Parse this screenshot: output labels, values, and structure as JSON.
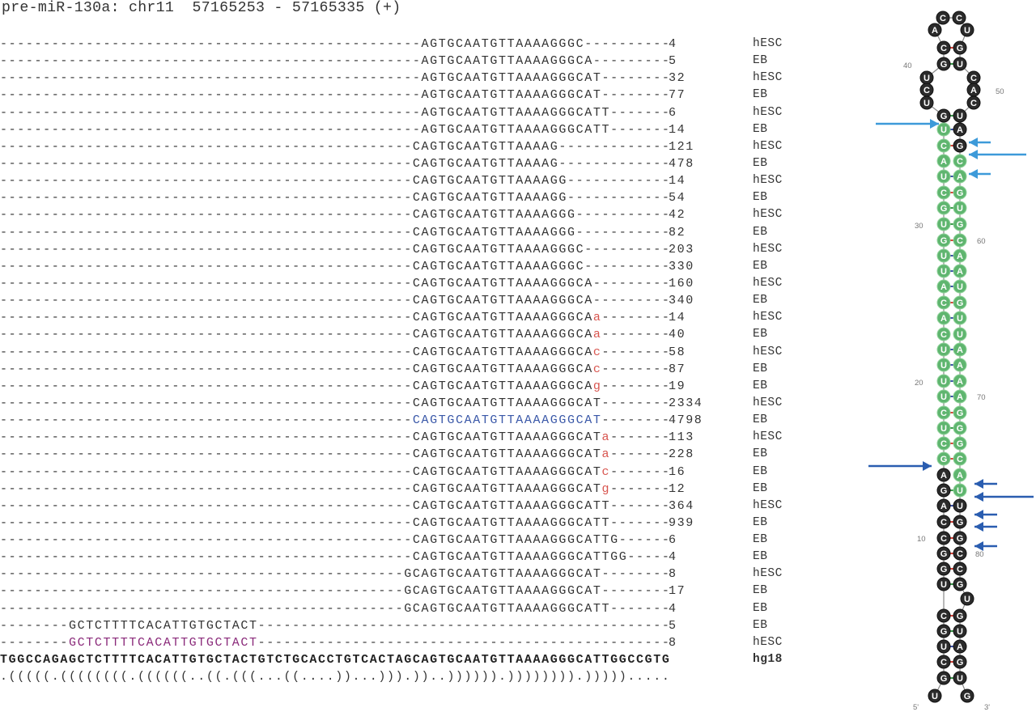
{
  "title": "pre-miR-130a: chr11  57165253 - 57165335 (+)",
  "rows": [
    {
      "pre": "-------------------------------------------------",
      "seq": "AGTGCAATGTTAAAAGGGC",
      "mod": "",
      "post": "----------",
      "count": "4",
      "sample": "hESC",
      "style": "normal"
    },
    {
      "pre": "-------------------------------------------------",
      "seq": "AGTGCAATGTTAAAAGGGCA",
      "mod": "",
      "post": "---------",
      "count": "5",
      "sample": "EB",
      "style": "normal"
    },
    {
      "pre": "-------------------------------------------------",
      "seq": "AGTGCAATGTTAAAAGGGCAT",
      "mod": "",
      "post": "--------",
      "count": "32",
      "sample": "hESC",
      "style": "normal"
    },
    {
      "pre": "-------------------------------------------------",
      "seq": "AGTGCAATGTTAAAAGGGCAT",
      "mod": "",
      "post": "--------",
      "count": "77",
      "sample": "EB",
      "style": "normal"
    },
    {
      "pre": "-------------------------------------------------",
      "seq": "AGTGCAATGTTAAAAGGGCATT",
      "mod": "",
      "post": "-------",
      "count": "6",
      "sample": "hESC",
      "style": "normal"
    },
    {
      "pre": "-------------------------------------------------",
      "seq": "AGTGCAATGTTAAAAGGGCATT",
      "mod": "",
      "post": "-------",
      "count": "14",
      "sample": "EB",
      "style": "normal"
    },
    {
      "pre": "------------------------------------------------",
      "seq": "CAGTGCAATGTTAAAAG",
      "mod": "",
      "post": "-------------",
      "count": "121",
      "sample": "hESC",
      "style": "normal"
    },
    {
      "pre": "------------------------------------------------",
      "seq": "CAGTGCAATGTTAAAAG",
      "mod": "",
      "post": "-------------",
      "count": "478",
      "sample": "EB",
      "style": "normal"
    },
    {
      "pre": "------------------------------------------------",
      "seq": "CAGTGCAATGTTAAAAGG",
      "mod": "",
      "post": "------------",
      "count": "14",
      "sample": "hESC",
      "style": "normal"
    },
    {
      "pre": "------------------------------------------------",
      "seq": "CAGTGCAATGTTAAAAGG",
      "mod": "",
      "post": "------------",
      "count": "54",
      "sample": "EB",
      "style": "normal"
    },
    {
      "pre": "------------------------------------------------",
      "seq": "CAGTGCAATGTTAAAAGGG",
      "mod": "",
      "post": "-----------",
      "count": "42",
      "sample": "hESC",
      "style": "normal"
    },
    {
      "pre": "------------------------------------------------",
      "seq": "CAGTGCAATGTTAAAAGGG",
      "mod": "",
      "post": "-----------",
      "count": "82",
      "sample": "EB",
      "style": "normal"
    },
    {
      "pre": "------------------------------------------------",
      "seq": "CAGTGCAATGTTAAAAGGGC",
      "mod": "",
      "post": "----------",
      "count": "203",
      "sample": "hESC",
      "style": "normal"
    },
    {
      "pre": "------------------------------------------------",
      "seq": "CAGTGCAATGTTAAAAGGGC",
      "mod": "",
      "post": "----------",
      "count": "330",
      "sample": "EB",
      "style": "normal"
    },
    {
      "pre": "------------------------------------------------",
      "seq": "CAGTGCAATGTTAAAAGGGCA",
      "mod": "",
      "post": "---------",
      "count": "160",
      "sample": "hESC",
      "style": "normal"
    },
    {
      "pre": "------------------------------------------------",
      "seq": "CAGTGCAATGTTAAAAGGGCA",
      "mod": "",
      "post": "---------",
      "count": "340",
      "sample": "EB",
      "style": "normal"
    },
    {
      "pre": "------------------------------------------------",
      "seq": "CAGTGCAATGTTAAAAGGGCA",
      "mod": "a",
      "post": "--------",
      "count": "14",
      "sample": "hESC",
      "style": "normal"
    },
    {
      "pre": "------------------------------------------------",
      "seq": "CAGTGCAATGTTAAAAGGGCA",
      "mod": "a",
      "post": "--------",
      "count": "40",
      "sample": "EB",
      "style": "normal"
    },
    {
      "pre": "------------------------------------------------",
      "seq": "CAGTGCAATGTTAAAAGGGCA",
      "mod": "c",
      "post": "--------",
      "count": "58",
      "sample": "hESC",
      "style": "normal"
    },
    {
      "pre": "------------------------------------------------",
      "seq": "CAGTGCAATGTTAAAAGGGCA",
      "mod": "c",
      "post": "--------",
      "count": "87",
      "sample": "EB",
      "style": "normal"
    },
    {
      "pre": "------------------------------------------------",
      "seq": "CAGTGCAATGTTAAAAGGGCA",
      "mod": "g",
      "post": "--------",
      "count": "19",
      "sample": "EB",
      "style": "normal"
    },
    {
      "pre": "------------------------------------------------",
      "seq": "CAGTGCAATGTTAAAAGGGCAT",
      "mod": "",
      "post": "--------",
      "count": "2334",
      "sample": "hESC",
      "style": "normal"
    },
    {
      "pre": "------------------------------------------------",
      "seq": "CAGTGCAATGTTAAAAGGGCAT",
      "mod": "",
      "post": "--------",
      "count": "4798",
      "sample": "EB",
      "style": "blue"
    },
    {
      "pre": "------------------------------------------------",
      "seq": "CAGTGCAATGTTAAAAGGGCAT",
      "mod": "a",
      "post": "-------",
      "count": "113",
      "sample": "hESC",
      "style": "normal"
    },
    {
      "pre": "------------------------------------------------",
      "seq": "CAGTGCAATGTTAAAAGGGCAT",
      "mod": "a",
      "post": "-------",
      "count": "228",
      "sample": "EB",
      "style": "normal"
    },
    {
      "pre": "------------------------------------------------",
      "seq": "CAGTGCAATGTTAAAAGGGCAT",
      "mod": "c",
      "post": "-------",
      "count": "16",
      "sample": "EB",
      "style": "normal"
    },
    {
      "pre": "------------------------------------------------",
      "seq": "CAGTGCAATGTTAAAAGGGCAT",
      "mod": "g",
      "post": "-------",
      "count": "12",
      "sample": "EB",
      "style": "normal"
    },
    {
      "pre": "------------------------------------------------",
      "seq": "CAGTGCAATGTTAAAAGGGCATT",
      "mod": "",
      "post": "-------",
      "count": "364",
      "sample": "hESC",
      "style": "normal"
    },
    {
      "pre": "------------------------------------------------",
      "seq": "CAGTGCAATGTTAAAAGGGCATT",
      "mod": "",
      "post": "-------",
      "count": "939",
      "sample": "EB",
      "style": "normal"
    },
    {
      "pre": "------------------------------------------------",
      "seq": "CAGTGCAATGTTAAAAGGGCATTG",
      "mod": "",
      "post": "------",
      "count": "6",
      "sample": "EB",
      "style": "normal"
    },
    {
      "pre": "------------------------------------------------",
      "seq": "CAGTGCAATGTTAAAAGGGCATTGG",
      "mod": "",
      "post": "-----",
      "count": "4",
      "sample": "EB",
      "style": "normal"
    },
    {
      "pre": "-----------------------------------------------",
      "seq": "GCAGTGCAATGTTAAAAGGGCAT",
      "mod": "",
      "post": "--------",
      "count": "8",
      "sample": "hESC",
      "style": "normal"
    },
    {
      "pre": "-----------------------------------------------",
      "seq": "GCAGTGCAATGTTAAAAGGGCAT",
      "mod": "",
      "post": "--------",
      "count": "17",
      "sample": "EB",
      "style": "normal"
    },
    {
      "pre": "-----------------------------------------------",
      "seq": "GCAGTGCAATGTTAAAAGGGCATT",
      "mod": "",
      "post": "-------",
      "count": "4",
      "sample": "EB",
      "style": "normal"
    },
    {
      "pre": "--------",
      "seq": "GCTCTTTTCACATTGTGCTACT",
      "mod": "",
      "post": "------------------------------------------------",
      "count": "5",
      "sample": "EB",
      "style": "normal"
    },
    {
      "pre": "--------",
      "seq": "GCTCTTTTCACATTGTGCTACT",
      "mod": "",
      "post": "------------------------------------------------",
      "count": "8",
      "sample": "hESC",
      "style": "purple"
    }
  ],
  "reference": {
    "seq": "TGGCCAGAGCTCTTTTCACATTGTGCTACTGTCTGCACCTGTCACTAGCAGTGCAATGTTAAAAGGGCATTGGCCGTG",
    "label": "hg18"
  },
  "structure": ".(((((.((((((((.((((((..((.(((...((....))...))).))..)))))).)))))))).))))).....",
  "hairpin": {
    "colors": {
      "mature": "#5fb56f",
      "other": "#2b2b2b",
      "arrow_light": "#3d9ad9",
      "arrow_dark": "#2a5db0",
      "pair_gc": "#d9433b",
      "pair_au": "#3b4fa8",
      "pair_gu": "#3a9a4a"
    },
    "terminal_loop": [
      "A",
      "C",
      "C",
      "U"
    ],
    "internal_loop_left": [
      "U",
      "C",
      "U"
    ],
    "internal_loop_right": [
      "C",
      "A",
      "C"
    ],
    "pairs": [
      [
        "C",
        "G",
        "k",
        "k"
      ],
      [
        "G",
        "U",
        "k",
        "k"
      ],
      [
        "G",
        "U",
        "k",
        "k"
      ],
      [
        "U",
        "A",
        "g",
        "k"
      ],
      [
        "C",
        "G",
        "g",
        "k"
      ],
      [
        "A",
        "C",
        "g",
        "g"
      ],
      [
        "U",
        "A",
        "g",
        "g"
      ],
      [
        "C",
        "G",
        "g",
        "g"
      ],
      [
        "G",
        "U",
        "g",
        "g"
      ],
      [
        "U",
        "G",
        "g",
        "g"
      ],
      [
        "G",
        "C",
        "g",
        "g"
      ],
      [
        "U",
        "A",
        "g",
        "g"
      ],
      [
        "U",
        "A",
        "g",
        "g"
      ],
      [
        "A",
        "U",
        "g",
        "g"
      ],
      [
        "C",
        "G",
        "g",
        "g"
      ],
      [
        "A",
        "U",
        "g",
        "g"
      ],
      [
        "C",
        "U",
        "g",
        "g"
      ],
      [
        "U",
        "A",
        "g",
        "g"
      ],
      [
        "U",
        "A",
        "g",
        "g"
      ],
      [
        "U",
        "A",
        "g",
        "g"
      ],
      [
        "U",
        "A",
        "g",
        "g"
      ],
      [
        "C",
        "G",
        "g",
        "g"
      ],
      [
        "U",
        "G",
        "g",
        "g"
      ],
      [
        "C",
        "G",
        "g",
        "g"
      ],
      [
        "G",
        "C",
        "g",
        "g"
      ],
      [
        "A",
        "A",
        "k",
        "g"
      ],
      [
        "G",
        "U",
        "k",
        "g"
      ],
      [
        "A",
        "U",
        "k",
        "k"
      ],
      [
        "C",
        "G",
        "k",
        "k"
      ],
      [
        "C",
        "G",
        "k",
        "k"
      ],
      [
        "G",
        "C",
        "k",
        "k"
      ],
      [
        "G",
        "C",
        "k",
        "k"
      ],
      [
        "U",
        "G",
        "k",
        "k"
      ],
      [
        "C",
        "G",
        "k",
        "k"
      ],
      [
        "G",
        "U",
        "k",
        "k"
      ],
      [
        "U",
        "A",
        "k",
        "k"
      ],
      [
        "C",
        "G",
        "k",
        "k"
      ],
      [
        "G",
        "U",
        "k",
        "k"
      ]
    ],
    "bulge": "U",
    "end_5": "U",
    "end_3": "G",
    "labels": {
      "five_prime": "5'",
      "three_prime": "3'",
      "n10": "10",
      "n20": "20",
      "n30": "30",
      "n40": "40",
      "n50": "50",
      "n60": "60",
      "n70": "70",
      "n80": "80"
    }
  }
}
